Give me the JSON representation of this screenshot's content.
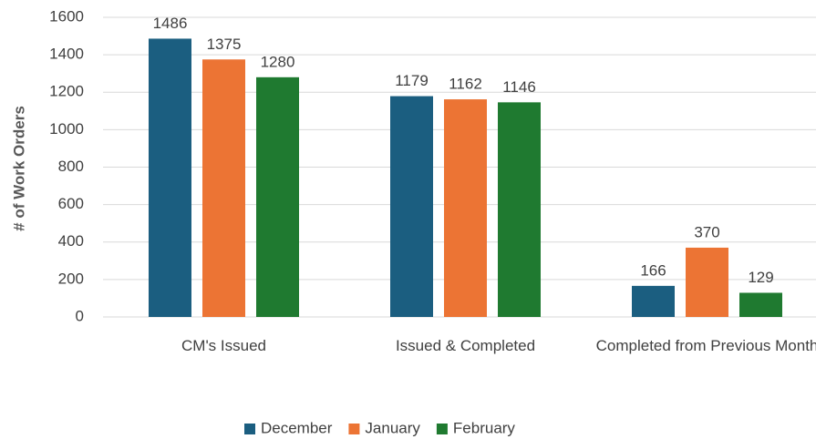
{
  "chart_data": {
    "type": "bar",
    "y_label": "# of Work Orders",
    "categories": [
      "CM's Issued",
      "Issued & Completed",
      "Completed from  Previous Month"
    ],
    "series": [
      {
        "name": "December",
        "color": "#1b5e80",
        "values": [
          1486,
          1179,
          166
        ]
      },
      {
        "name": "January",
        "color": "#ec7434",
        "values": [
          1375,
          1162,
          370
        ]
      },
      {
        "name": "February",
        "color": "#1f7a30",
        "values": [
          1280,
          1146,
          129
        ]
      }
    ],
    "ylim": [
      0,
      1600
    ],
    "yticks": [
      0,
      200,
      400,
      600,
      800,
      1000,
      1200,
      1400,
      1600
    ],
    "grid": true,
    "legend": "bottom"
  }
}
